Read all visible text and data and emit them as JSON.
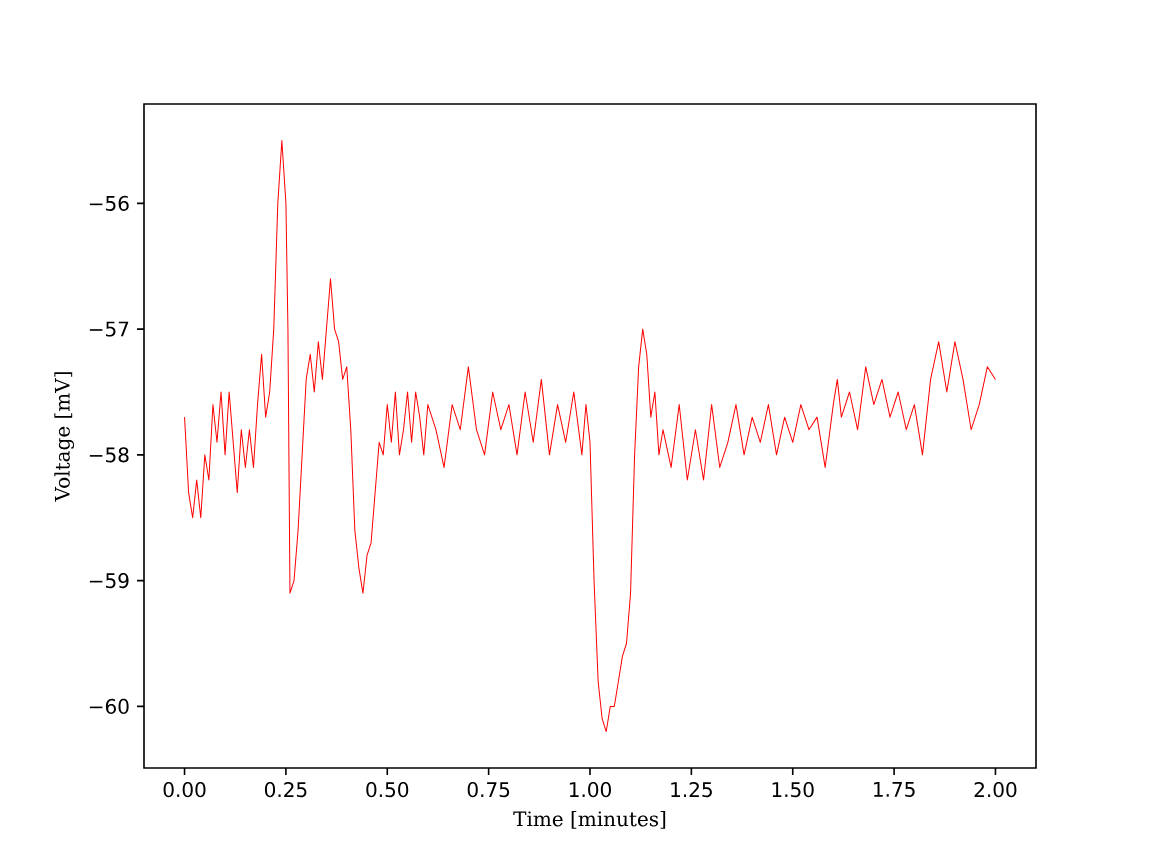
{
  "chart_data": {
    "type": "line",
    "xlabel": "Time [minutes]",
    "ylabel": "Voltage [mV]",
    "color": "#ff0000",
    "xlim": [
      -0.1,
      2.1
    ],
    "ylim": [
      -60.49,
      -55.21
    ],
    "xticks": [
      {
        "value": 0,
        "label": "0.00"
      },
      {
        "value": 0.25,
        "label": "0.25"
      },
      {
        "value": 0.5,
        "label": "0.50"
      },
      {
        "value": 0.75,
        "label": "0.75"
      },
      {
        "value": 1,
        "label": "1.00"
      },
      {
        "value": 1.25,
        "label": "1.25"
      },
      {
        "value": 1.5,
        "label": "1.50"
      },
      {
        "value": 1.75,
        "label": "1.75"
      },
      {
        "value": 2,
        "label": "2.00"
      }
    ],
    "yticks": [
      {
        "value": -60,
        "label": "−60"
      },
      {
        "value": -59,
        "label": "−59"
      },
      {
        "value": -58,
        "label": "−58"
      },
      {
        "value": -57,
        "label": "−57"
      },
      {
        "value": -56,
        "label": "−56"
      }
    ],
    "x": [
      0.0,
      0.01,
      0.02,
      0.03,
      0.04,
      0.05,
      0.06,
      0.07,
      0.08,
      0.09,
      0.1,
      0.11,
      0.12,
      0.13,
      0.14,
      0.15,
      0.16,
      0.17,
      0.18,
      0.19,
      0.2,
      0.21,
      0.22,
      0.23,
      0.24,
      0.25,
      0.255,
      0.26,
      0.27,
      0.28,
      0.29,
      0.3,
      0.31,
      0.32,
      0.33,
      0.34,
      0.35,
      0.36,
      0.37,
      0.38,
      0.39,
      0.4,
      0.41,
      0.42,
      0.43,
      0.44,
      0.45,
      0.46,
      0.47,
      0.48,
      0.49,
      0.5,
      0.51,
      0.52,
      0.53,
      0.54,
      0.55,
      0.56,
      0.57,
      0.58,
      0.59,
      0.6,
      0.62,
      0.64,
      0.66,
      0.68,
      0.7,
      0.72,
      0.74,
      0.76,
      0.78,
      0.8,
      0.82,
      0.84,
      0.86,
      0.88,
      0.9,
      0.92,
      0.94,
      0.96,
      0.98,
      0.99,
      1.0,
      1.01,
      1.02,
      1.03,
      1.04,
      1.05,
      1.06,
      1.07,
      1.08,
      1.09,
      1.1,
      1.11,
      1.12,
      1.13,
      1.14,
      1.15,
      1.16,
      1.17,
      1.18,
      1.2,
      1.22,
      1.24,
      1.26,
      1.28,
      1.3,
      1.32,
      1.34,
      1.36,
      1.38,
      1.4,
      1.42,
      1.44,
      1.46,
      1.48,
      1.5,
      1.52,
      1.54,
      1.56,
      1.58,
      1.6,
      1.61,
      1.62,
      1.64,
      1.66,
      1.68,
      1.7,
      1.72,
      1.74,
      1.76,
      1.78,
      1.8,
      1.82,
      1.84,
      1.86,
      1.88,
      1.9,
      1.92,
      1.94,
      1.96,
      1.98,
      2.0
    ],
    "values": [
      -57.7,
      -58.3,
      -58.5,
      -58.2,
      -58.5,
      -58.0,
      -58.2,
      -57.6,
      -57.9,
      -57.5,
      -58.0,
      -57.5,
      -57.9,
      -58.3,
      -57.8,
      -58.1,
      -57.8,
      -58.1,
      -57.6,
      -57.2,
      -57.7,
      -57.5,
      -57.0,
      -56.0,
      -55.5,
      -56.0,
      -57.0,
      -59.1,
      -59.0,
      -58.6,
      -58.0,
      -57.4,
      -57.2,
      -57.5,
      -57.1,
      -57.4,
      -57.0,
      -56.6,
      -57.0,
      -57.1,
      -57.4,
      -57.3,
      -57.8,
      -58.6,
      -58.9,
      -59.1,
      -58.8,
      -58.7,
      -58.3,
      -57.9,
      -58.0,
      -57.6,
      -57.9,
      -57.5,
      -58.0,
      -57.8,
      -57.5,
      -57.9,
      -57.5,
      -57.7,
      -58.0,
      -57.6,
      -57.8,
      -58.1,
      -57.6,
      -57.8,
      -57.3,
      -57.8,
      -58.0,
      -57.5,
      -57.8,
      -57.6,
      -58.0,
      -57.5,
      -57.9,
      -57.4,
      -58.0,
      -57.6,
      -57.9,
      -57.5,
      -58.0,
      -57.6,
      -57.9,
      -59.0,
      -59.8,
      -60.1,
      -60.2,
      -60.0,
      -60.0,
      -59.8,
      -59.6,
      -59.5,
      -59.1,
      -58.0,
      -57.3,
      -57.0,
      -57.2,
      -57.7,
      -57.5,
      -58.0,
      -57.8,
      -58.1,
      -57.6,
      -58.2,
      -57.8,
      -58.2,
      -57.6,
      -58.1,
      -57.9,
      -57.6,
      -58.0,
      -57.7,
      -57.9,
      -57.6,
      -58.0,
      -57.7,
      -57.9,
      -57.6,
      -57.8,
      -57.7,
      -58.1,
      -57.6,
      -57.4,
      -57.7,
      -57.5,
      -57.8,
      -57.3,
      -57.6,
      -57.4,
      -57.7,
      -57.5,
      -57.8,
      -57.6,
      -58.0,
      -57.4,
      -57.1,
      -57.5,
      -57.1,
      -57.4,
      -57.8,
      -57.6,
      -57.3,
      -57.4
    ]
  }
}
